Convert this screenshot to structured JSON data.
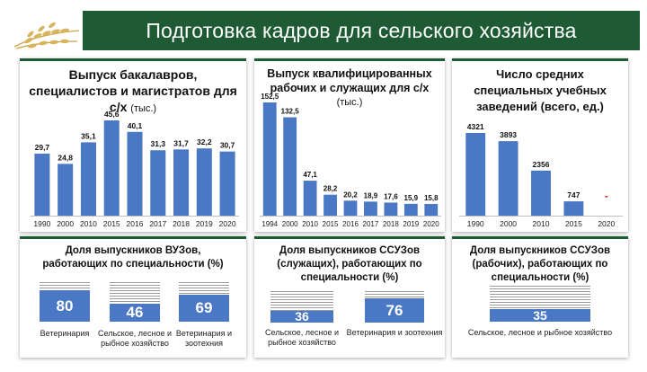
{
  "header": {
    "title": "Подготовка кадров для сельского хозяйства"
  },
  "colors": {
    "bar": "#4a78c4",
    "banner": "#1e5b34",
    "missing_value": "#e02020"
  },
  "charts": {
    "bachelors": {
      "title_line1": "Выпуск бакалавров,",
      "title_line2": "специалистов и магистратов для",
      "title_line3": "с/х",
      "unit": "(тыс.)"
    },
    "workers": {
      "title_line1": "Выпуск квалифицированных",
      "title_line2": "рабочих и служащих для с/х",
      "unit": "(тыс.)"
    },
    "schools": {
      "title_line1": "Число средних",
      "title_line2": "специальных учебных",
      "title_line3": "заведений (всего, ед.)",
      "missing_mark": "-"
    }
  },
  "chart_data": [
    {
      "type": "bar",
      "categories": [
        "1990",
        "2000",
        "2010",
        "2015",
        "2016",
        "2017",
        "2018",
        "2019",
        "2020"
      ],
      "values": [
        29.7,
        24.8,
        35.1,
        45.6,
        40.1,
        31.3,
        31.7,
        32.2,
        30.7
      ],
      "labels": [
        "29,7",
        "24,8",
        "35,1",
        "45,6",
        "40,1",
        "31,3",
        "31,7",
        "32,2",
        "30,7"
      ],
      "title": "Выпуск бакалавров, специалистов и магистратов для с/х (тыс.)"
    },
    {
      "type": "bar",
      "categories": [
        "1994",
        "2000",
        "2010",
        "2015",
        "2016",
        "2017",
        "2018",
        "2019",
        "2020"
      ],
      "values": [
        152.5,
        132.5,
        47.1,
        28.2,
        20.2,
        18.9,
        17.6,
        15.9,
        15.8
      ],
      "labels": [
        "152,5",
        "132,5",
        "47,1",
        "28,2",
        "20,2",
        "18,9",
        "17,6",
        "15,9",
        "15,8"
      ],
      "title": "Выпуск квалифицированных рабочих и служащих для с/х (тыс.)"
    },
    {
      "type": "bar",
      "categories": [
        "1990",
        "2000",
        "2010",
        "2015",
        "2020"
      ],
      "values": [
        4321,
        3893,
        2356,
        747,
        null
      ],
      "labels": [
        "4321",
        "3893",
        "2356",
        "747",
        "-"
      ],
      "title": "Число средних специальных учебных заведений (всего, ед.)"
    }
  ],
  "shares": {
    "vuz": {
      "title_line1": "Доля выпускников ВУЗов,",
      "title_line2": "работающих по специальности (%)",
      "items": [
        {
          "value": 80,
          "label_line1": "Ветеринария",
          "label_line2": ""
        },
        {
          "value": 46,
          "label_line1": "Сельское, лесное и",
          "label_line2": "рыбное хозяйство"
        },
        {
          "value": 69,
          "label_line1": "Ветеринария и",
          "label_line2": "зоотехния"
        }
      ]
    },
    "ssuz_employees": {
      "title_line1": "Доля выпускников ССУЗов",
      "title_line2": "(служащих), работающих по",
      "title_line3": "специальности (%)",
      "items": [
        {
          "value": 36,
          "label_line1": "Сельское, лесное и",
          "label_line2": "рыбное хозяйство"
        },
        {
          "value": 76,
          "label_line1": "Ветеринария и зоотехния",
          "label_line2": ""
        }
      ]
    },
    "ssuz_workers": {
      "title_line1": "Доля выпускников ССУЗов",
      "title_line2": "(рабочих), работающих по",
      "title_line3": "специальности (%)",
      "items": [
        {
          "value": 35,
          "label_line1": "Сельское, лесное и рыбное хозяйство",
          "label_line2": ""
        }
      ]
    }
  }
}
